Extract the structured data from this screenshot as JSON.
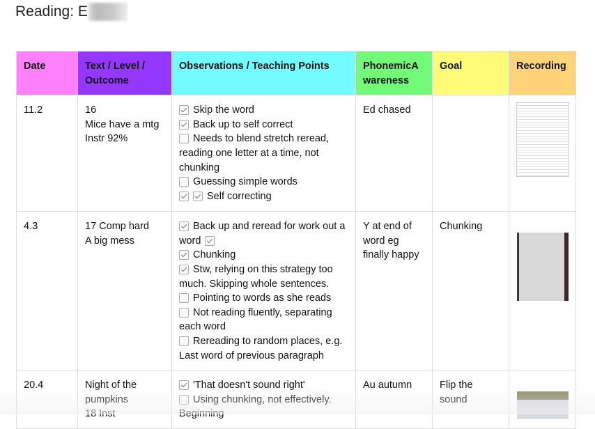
{
  "page": {
    "title": "Reading: E"
  },
  "colors": {
    "date": "#ff80fc",
    "text": "#9437ff",
    "obs": "#73fcff",
    "phon": "#73fa79",
    "goal": "#fffb78",
    "rec": "#ffd479"
  },
  "headers": {
    "date": "Date",
    "text": "Text / Level / Outcome",
    "obs": "Observations / Teaching Points",
    "phon": "PhonemicAwareness",
    "goal": "Goal",
    "rec": "Recording"
  },
  "rows": [
    {
      "date": "11.2",
      "text": [
        "16",
        "Mice have a mtg",
        "Instr 92%"
      ],
      "obs": [
        {
          "checks": [
            true
          ],
          "text": "Skip the word"
        },
        {
          "checks": [
            true
          ],
          "text": "Back up to self correct"
        },
        {
          "checks": [
            false
          ],
          "text": "Needs to blend stretch reread, reading one letter at a time, not chunking"
        },
        {
          "checks": [
            false
          ],
          "text": "Guessing simple words"
        },
        {
          "checks": [
            true,
            true
          ],
          "text": "Self correcting"
        }
      ],
      "phon": "Ed chased",
      "goal": "",
      "rec": "scanned-worksheet"
    },
    {
      "date": "4.3",
      "text": [
        "17 Comp hard",
        "A big mess"
      ],
      "obs": [
        {
          "checks": [
            true
          ],
          "text": "Back up and reread for work out a word",
          "trailing_check": true
        },
        {
          "checks": [
            true
          ],
          "text": "Chunking"
        },
        {
          "checks": [
            true
          ],
          "text": "Stw, relying on this strategy too much. Skipping whole sentences."
        },
        {
          "checks": [
            false
          ],
          "text": "Pointing to words as she reads"
        },
        {
          "checks": [
            false
          ],
          "text": "Not reading fluently, separating each word"
        },
        {
          "checks": [
            false
          ],
          "text": "Rereading to random places, e.g. Last word of previous paragraph"
        }
      ],
      "phon": "Y at end of word eg finally happy",
      "goal": "Chunking",
      "rec": "clipboard-photo"
    },
    {
      "date": "20.4",
      "text": [
        "Night of the pumpkins",
        "18  Inst"
      ],
      "obs": [
        {
          "checks": [
            true
          ],
          "text": "'That doesn't sound right'"
        },
        {
          "checks": [
            false
          ],
          "text": "Using chunking, not effectively. Beginning"
        }
      ],
      "phon": "Au autumn",
      "goal": "Flip the sound",
      "rec": "clipboard-photo"
    }
  ]
}
